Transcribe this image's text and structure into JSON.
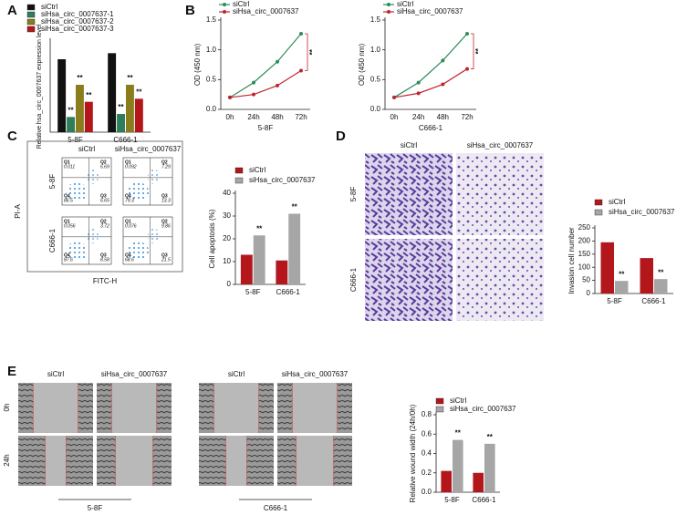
{
  "panel_labels": [
    "A",
    "B",
    "C",
    "D",
    "E"
  ],
  "chart_data": [
    {
      "type": "bar",
      "y_label": "Relative hsa_circ_0007637 expression level",
      "categories": [
        "5-8F",
        "C666-1"
      ],
      "ylim": [
        0,
        1.5
      ],
      "series": [
        {
          "name": "siCtrl",
          "color": "#111111",
          "values": [
            1.2,
            1.3
          ]
        },
        {
          "name": "siHsa_circ_0007637-1",
          "color": "#2e7d5b",
          "values": [
            0.25,
            0.3
          ],
          "significance": [
            "**",
            "**"
          ]
        },
        {
          "name": "siHsa_circ_0007637-2",
          "color": "#8a7d1e",
          "values": [
            0.78,
            0.78
          ],
          "significance": [
            "**",
            "**"
          ]
        },
        {
          "name": "siHsa_circ_0007637-3",
          "color": "#b3161b",
          "values": [
            0.5,
            0.55
          ],
          "significance": [
            "**",
            "**"
          ]
        }
      ]
    },
    {
      "type": "line",
      "y_label": "OD (450 nm)",
      "x_label": "5-8F",
      "annotation": "**",
      "categories": [
        "0h",
        "24h",
        "48h",
        "72h"
      ],
      "ylim": [
        0,
        1.5
      ],
      "yticks": [
        {
          "value": 0,
          "label": "0.0"
        },
        {
          "value": 0.5,
          "label": "0.5"
        },
        {
          "value": 1,
          "label": "1.0"
        },
        {
          "value": 1.5,
          "label": "1.5"
        }
      ],
      "series": [
        {
          "name": "siCtrl",
          "color": "#2e8b57",
          "values": [
            0.2,
            0.45,
            0.8,
            1.27
          ]
        },
        {
          "name": "siHsa_circ_0007637",
          "color": "#c0262d",
          "values": [
            0.2,
            0.25,
            0.4,
            0.65
          ]
        }
      ]
    },
    {
      "type": "line",
      "y_label": "OD (450 nm)",
      "x_label": "C666-1",
      "annotation": "**",
      "categories": [
        "0h",
        "24h",
        "48h",
        "72h"
      ],
      "ylim": [
        0,
        1.5
      ],
      "yticks": [
        {
          "value": 0,
          "label": "0.0"
        },
        {
          "value": 0.5,
          "label": "0.5"
        },
        {
          "value": 1,
          "label": "1.0"
        },
        {
          "value": 1.5,
          "label": "1.5"
        }
      ],
      "series": [
        {
          "name": "siCtrl",
          "color": "#2e8b57",
          "values": [
            0.2,
            0.45,
            0.82,
            1.27
          ]
        },
        {
          "name": "siHsa_circ_0007637",
          "color": "#c0262d",
          "values": [
            0.2,
            0.27,
            0.42,
            0.68
          ]
        }
      ]
    },
    {
      "type": "bar",
      "y_label": "Cell apoptosis (%)",
      "categories": [
        "5-8F",
        "C666-1"
      ],
      "ylim": [
        0,
        40
      ],
      "yticks": [
        0,
        10,
        20,
        30,
        40
      ],
      "series": [
        {
          "name": "siCtrl",
          "color": "#b3161b",
          "values": [
            13,
            10.5
          ]
        },
        {
          "name": "siHsa_circ_0007637",
          "color": "#a6a6a6",
          "values": [
            21.5,
            31
          ],
          "significance": [
            "**",
            "**"
          ]
        }
      ]
    },
    {
      "type": "bar",
      "y_label": "Invasion cell number",
      "categories": [
        "5-8F",
        "C666-1"
      ],
      "ylim": [
        0,
        250
      ],
      "yticks": [
        0,
        50,
        100,
        150,
        200,
        250
      ],
      "series": [
        {
          "name": "siCtrl",
          "color": "#b3161b",
          "values": [
            195,
            135
          ]
        },
        {
          "name": "siHsa_circ_0007637",
          "color": "#a6a6a6",
          "values": [
            48,
            55
          ],
          "significance": [
            "**",
            "**"
          ]
        }
      ]
    },
    {
      "type": "bar",
      "y_label": "Relative wound width (24h/0h)",
      "categories": [
        "5-8F",
        "C666-1"
      ],
      "ylim": [
        0,
        0.8
      ],
      "yticks": [
        {
          "value": 0,
          "label": "0.0"
        },
        {
          "value": 0.2,
          "label": "0.2"
        },
        {
          "value": 0.4,
          "label": "0.4"
        },
        {
          "value": 0.6,
          "label": "0.6"
        },
        {
          "value": 0.8,
          "label": "0.8"
        }
      ],
      "series": [
        {
          "name": "siCtrl",
          "color": "#b3161b",
          "values": [
            0.22,
            0.2
          ]
        },
        {
          "name": "siHsa_circ_0007637",
          "color": "#a6a6a6",
          "values": [
            0.54,
            0.5
          ],
          "significance": [
            "**",
            "**"
          ]
        }
      ]
    }
  ],
  "flow": {
    "columns": [
      "siCtrl",
      "siHsa_circ_0007637"
    ],
    "rows": [
      "5-8F",
      "C666-1"
    ],
    "y_label": "PI-A",
    "x_label": "FITC-H",
    "plots": [
      [
        {
          "name": "Q1",
          "value": 0.011
        },
        {
          "name": "Q2",
          "value": 6.69
        },
        {
          "name": "Q4",
          "value": 86.5
        },
        {
          "name": "Q3",
          "value": 6.65
        }
      ],
      [
        {
          "name": "Q1",
          "value": 0.092
        },
        {
          "name": "Q2",
          "value": 7.29
        },
        {
          "name": "Q4",
          "value": 79.3
        },
        {
          "name": "Q3",
          "value": 13.3
        }
      ],
      [
        {
          "name": "Q1",
          "value": 0.056
        },
        {
          "name": "Q2",
          "value": 3.72
        },
        {
          "name": "Q4",
          "value": 87.6
        },
        {
          "name": "Q3",
          "value": 8.58
        }
      ],
      [
        {
          "name": "Q1",
          "value": 0.076
        },
        {
          "name": "Q2",
          "value": 9.86
        },
        {
          "name": "Q4",
          "value": 68.6
        },
        {
          "name": "Q3",
          "value": 21.5
        }
      ]
    ]
  },
  "invasion": {
    "columns": [
      "siCtrl",
      "siHsa_circ_0007637"
    ],
    "rows": [
      "5-8F",
      "C666-1"
    ]
  },
  "wound": {
    "columns": [
      "siCtrl",
      "siHsa_circ_0007637",
      "siCtrl",
      "siHsa_circ_0007637"
    ],
    "rows": [
      "0h",
      "24h"
    ],
    "groups": [
      "5-8F",
      "C666-1"
    ]
  }
}
